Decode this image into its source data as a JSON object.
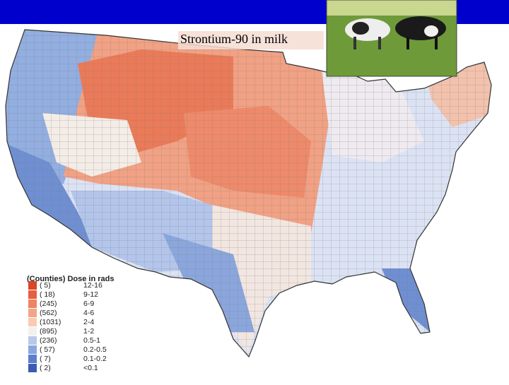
{
  "title": "Strontium-90 in milk",
  "legend": {
    "header": "(Counties) Dose in rads",
    "entries": [
      {
        "count": "( 5)",
        "range": "12-16",
        "color": "#d8472a"
      },
      {
        "count": "( 18)",
        "range": "9-12",
        "color": "#e4603e"
      },
      {
        "count": "(245)",
        "range": "6-9",
        "color": "#ee8462"
      },
      {
        "count": "(562)",
        "range": "4-6",
        "color": "#f3a685"
      },
      {
        "count": "(1031)",
        "range": "2-4",
        "color": "#f8cbb2"
      },
      {
        "count": "(895)",
        "range": "1-2",
        "color": "#f3f1ee"
      },
      {
        "count": "(236)",
        "range": "0.5-1",
        "color": "#b9c9ec"
      },
      {
        "count": "( 57)",
        "range": "0.2-0.5",
        "color": "#8ba7dd"
      },
      {
        "count": "( 7)",
        "range": "0.1-0.2",
        "color": "#5b7fca"
      },
      {
        "count": "( 2)",
        "range": "<0.1",
        "color": "#3a5db1"
      }
    ]
  }
}
